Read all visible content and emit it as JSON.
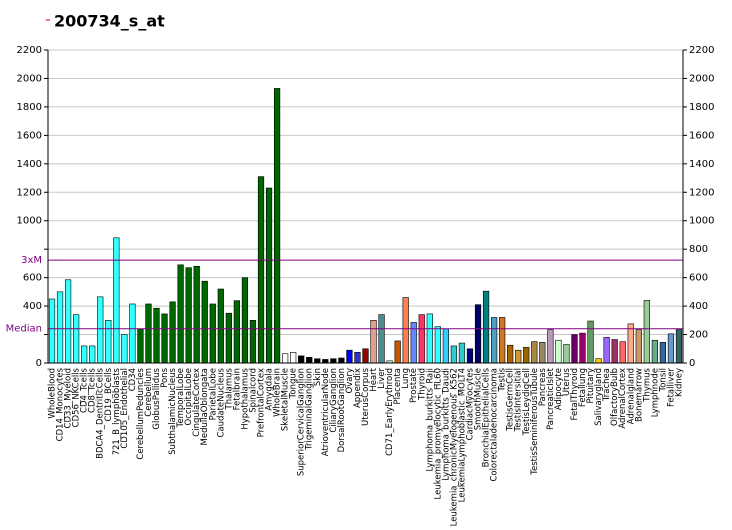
{
  "chart_data": {
    "type": "bar",
    "title": "200734_s_at",
    "categories": [
      "WholeBlood",
      "CD14_Monocytes",
      "CD33_Myeloid",
      "CD56_NKCells",
      "CD4_Tcells",
      "CD8_Tcells",
      "BDCA4_DentriticCells",
      "CD19_BCells",
      "721_B_lymphoblasts",
      "CD105_Endothelial",
      "CD34",
      "CerebellumPeduncles",
      "Cerebellum",
      "GlobusPallidus",
      "Pons",
      "SubthalamicNucleus",
      "TemporalLobe",
      "OccipitalLobe",
      "CingulateCortex",
      "MedullaOblongata",
      "ParietalLobe",
      "CaudateNucleus",
      "Thalamus",
      "Fetalbrain",
      "Hypothalamus",
      "Spinalcord",
      "PrefrontalCortex",
      "Amygdala",
      "WholeBrain",
      "SkeletalMuscle",
      "Tongue",
      "SuperiorCervicalGanglion",
      "TrigeminalGanglion",
      "Skin",
      "AtrioventricularNode",
      "CiliaryGanglion",
      "DorsalRootGanglion",
      "Ovary",
      "Appendix",
      "UterusCorpus",
      "Heart",
      "Liver",
      "CD71_EarlyErythroid",
      "Placenta",
      "Lung",
      "Prostate",
      "Thyroid",
      "Lymphoma_burkitts_Raji",
      "Leukemia_promyelocytic_HL60",
      "Lymphoma_burkitts_Daudi",
      "Leukemia_chronicMyelogenous_K562",
      "LeukemiaLymphoblastic_MOLT4",
      "CardiacMyocytes",
      "SmoothMuscle",
      "BronchialEpithelialCells",
      "Colorectaladenocarcinoma",
      "Testis",
      "TestisGermCell",
      "TestisIntersitial",
      "TestisLeydigCell",
      "TestisSeminiferousTubule",
      "Pancreas",
      "PancreaticIslet",
      "Adipocyte",
      "Uterus",
      "FetalThyroid",
      "Fetallung",
      "Pituitary",
      "Salivarygland",
      "Trachea",
      "OlfactoryBulb",
      "AdrenalCortex",
      "Adrenalgland",
      "Bonemarrow",
      "Thymus",
      "Lymphnode",
      "Tonsil",
      "Fetalliver",
      "Kidney"
    ],
    "values": [
      450,
      500,
      585,
      340,
      120,
      120,
      465,
      300,
      880,
      200,
      415,
      240,
      415,
      385,
      345,
      430,
      690,
      670,
      680,
      575,
      415,
      520,
      350,
      438,
      600,
      300,
      1310,
      1230,
      1930,
      65,
      75,
      50,
      40,
      30,
      25,
      30,
      35,
      90,
      75,
      100,
      300,
      340,
      15,
      155,
      460,
      285,
      340,
      345,
      255,
      240,
      120,
      140,
      100,
      410,
      505,
      320,
      320,
      125,
      90,
      110,
      150,
      145,
      235,
      160,
      130,
      200,
      210,
      295,
      30,
      180,
      165,
      150,
      275,
      235,
      440,
      160,
      145,
      205,
      235
    ],
    "colors": [
      "#33ffff",
      "#33ffff",
      "#33ffff",
      "#33ffff",
      "#33ffff",
      "#33ffff",
      "#33ffff",
      "#33ffff",
      "#33ffff",
      "#33ffff",
      "#33ffff",
      "#006600",
      "#006600",
      "#006600",
      "#006600",
      "#006600",
      "#006600",
      "#006600",
      "#006600",
      "#006600",
      "#006600",
      "#006600",
      "#006600",
      "#006600",
      "#006600",
      "#006600",
      "#006600",
      "#006600",
      "#006600",
      "#ffffff",
      "#ffffff",
      "#000000",
      "#000000",
      "#000000",
      "#000000",
      "#000000",
      "#000000",
      "#0000ff",
      "#3333cc",
      "#990000",
      "#e0a090",
      "#4a8f8f",
      "#ccffcc",
      "#cc5500",
      "#ff7f50",
      "#6688ff",
      "#ff3366",
      "#33ffff",
      "#33ffff",
      "#33ccff",
      "#33cccc",
      "#33cccc",
      "#000080",
      "#000066",
      "#008080",
      "#4f9fbf",
      "#cc7722",
      "#aa6600",
      "#cc9933",
      "#996600",
      "#aa8844",
      "#998866",
      "#bb99bb",
      "#ccffcc",
      "#99cc99",
      "#660066",
      "#990066",
      "#669966",
      "#ffcc00",
      "#9966ff",
      "#993366",
      "#ff6666",
      "#ffaa88",
      "#cc9966",
      "#99cc99",
      "#66aa88",
      "#336699",
      "#6699cc",
      "#336666"
    ],
    "ylim": [
      0,
      2200
    ],
    "yticks": [
      0,
      200,
      400,
      600,
      800,
      1000,
      1200,
      1400,
      1600,
      1800,
      2000,
      2200
    ],
    "grid": true,
    "reference_lines": [
      {
        "label": "3xM",
        "value": 723,
        "color": "#800080"
      },
      {
        "label": "Median",
        "value": 241,
        "color": "#800080"
      }
    ]
  }
}
